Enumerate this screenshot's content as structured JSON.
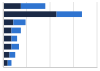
{
  "chart_data": {
    "type": "bar",
    "orientation": "horizontal",
    "stacked": true,
    "categories": [
      null,
      null,
      null,
      null,
      null,
      null,
      null,
      null
    ],
    "series": [
      {
        "color": "#1b2a47",
        "values": [
          19,
          57,
          11,
          9,
          9,
          9,
          7,
          5
        ]
      },
      {
        "color": "#2f74d0",
        "values": [
          26,
          27,
          13,
          10,
          6,
          8,
          6,
          4
        ]
      }
    ],
    "xlim": [
      0,
      100
    ],
    "xticks": [
      0,
      25,
      50,
      75,
      100
    ],
    "grid": true,
    "tick_labels": false
  }
}
